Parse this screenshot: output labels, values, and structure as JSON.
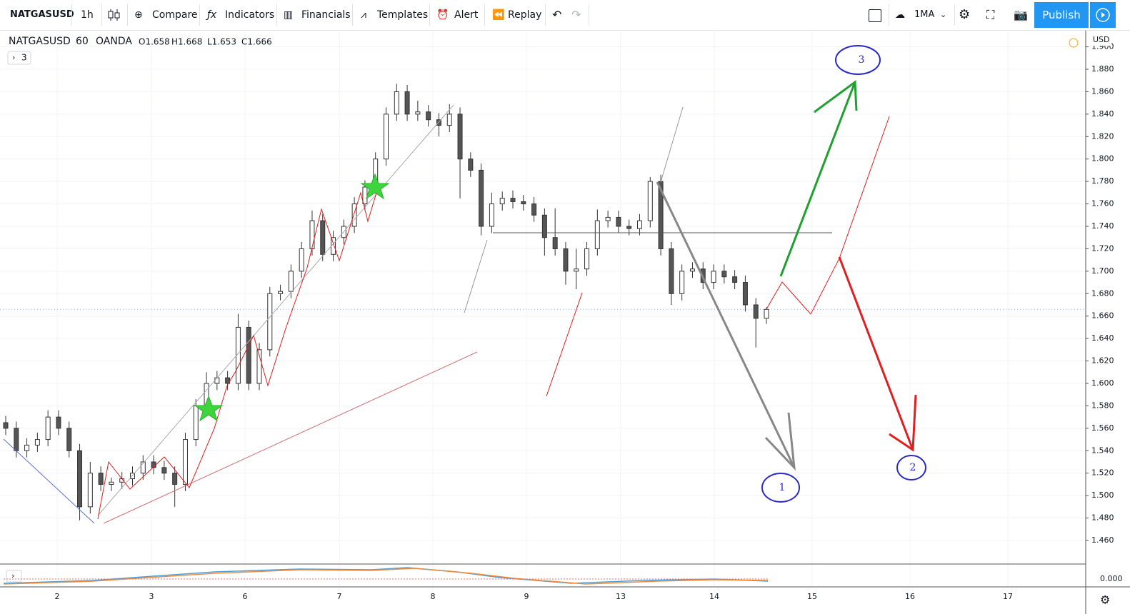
{
  "toolbar": {
    "symbol": "NATGASUSD",
    "interval": "1h",
    "buttons": [
      "Compare",
      "Indicators",
      "Financials",
      "Templates",
      "Alert",
      "Replay"
    ],
    "indicator_button": "1MA",
    "publish": "Publish"
  },
  "chart_data": {
    "type": "candlestick",
    "symbol": "NATGASUSD",
    "interval": "60",
    "source": "OANDA",
    "legend": [
      "O1.658",
      "H1.668",
      "L1.653",
      "C1.666"
    ],
    "collapsed_count": "3",
    "currency": "USD",
    "categories": [
      "2",
      "3",
      "6",
      "7",
      "8",
      "9",
      "13",
      "14",
      "15",
      "16",
      "17"
    ],
    "candles": [
      [
        1.565,
        1.571,
        1.554,
        1.56
      ],
      [
        1.56,
        1.566,
        1.534,
        1.54
      ],
      [
        1.54,
        1.551,
        1.534,
        1.545
      ],
      [
        1.545,
        1.556,
        1.539,
        1.55
      ],
      [
        1.55,
        1.576,
        1.544,
        1.57
      ],
      [
        1.57,
        1.576,
        1.554,
        1.56
      ],
      [
        1.56,
        1.566,
        1.534,
        1.54
      ],
      [
        1.54,
        1.546,
        1.478,
        1.49
      ],
      [
        1.49,
        1.53,
        1.484,
        1.52
      ],
      [
        1.52,
        1.526,
        1.504,
        1.51
      ],
      [
        1.51,
        1.516,
        1.504,
        1.512
      ],
      [
        1.512,
        1.521,
        1.506,
        1.515
      ],
      [
        1.515,
        1.526,
        1.509,
        1.52
      ],
      [
        1.52,
        1.536,
        1.514,
        1.53
      ],
      [
        1.53,
        1.536,
        1.519,
        1.525
      ],
      [
        1.525,
        1.531,
        1.514,
        1.52
      ],
      [
        1.52,
        1.526,
        1.49,
        1.51
      ],
      [
        1.51,
        1.556,
        1.504,
        1.55
      ],
      [
        1.55,
        1.586,
        1.544,
        1.58
      ],
      [
        1.58,
        1.61,
        1.574,
        1.6
      ],
      [
        1.6,
        1.611,
        1.594,
        1.605
      ],
      [
        1.605,
        1.611,
        1.594,
        1.6
      ],
      [
        1.6,
        1.662,
        1.594,
        1.65
      ],
      [
        1.65,
        1.656,
        1.594,
        1.6
      ],
      [
        1.6,
        1.636,
        1.594,
        1.63
      ],
      [
        1.63,
        1.686,
        1.624,
        1.68
      ],
      [
        1.68,
        1.688,
        1.674,
        1.682
      ],
      [
        1.682,
        1.706,
        1.676,
        1.7
      ],
      [
        1.7,
        1.726,
        1.694,
        1.72
      ],
      [
        1.72,
        1.754,
        1.714,
        1.745
      ],
      [
        1.745,
        1.751,
        1.709,
        1.715
      ],
      [
        1.715,
        1.736,
        1.709,
        1.73
      ],
      [
        1.73,
        1.746,
        1.724,
        1.74
      ],
      [
        1.74,
        1.766,
        1.734,
        1.76
      ],
      [
        1.76,
        1.781,
        1.754,
        1.775
      ],
      [
        1.775,
        1.806,
        1.769,
        1.8
      ],
      [
        1.8,
        1.846,
        1.794,
        1.84
      ],
      [
        1.84,
        1.867,
        1.834,
        1.86
      ],
      [
        1.86,
        1.866,
        1.834,
        1.84
      ],
      [
        1.84,
        1.852,
        1.834,
        1.842
      ],
      [
        1.842,
        1.848,
        1.829,
        1.835
      ],
      [
        1.835,
        1.841,
        1.82,
        1.83
      ],
      [
        1.83,
        1.849,
        1.824,
        1.84
      ],
      [
        1.84,
        1.846,
        1.765,
        1.8
      ],
      [
        1.8,
        1.806,
        1.784,
        1.79
      ],
      [
        1.79,
        1.796,
        1.732,
        1.74
      ],
      [
        1.74,
        1.77,
        1.734,
        1.76
      ],
      [
        1.76,
        1.771,
        1.754,
        1.765
      ],
      [
        1.765,
        1.772,
        1.756,
        1.762
      ],
      [
        1.762,
        1.768,
        1.754,
        1.76
      ],
      [
        1.76,
        1.766,
        1.744,
        1.75
      ],
      [
        1.75,
        1.756,
        1.714,
        1.73
      ],
      [
        1.73,
        1.756,
        1.714,
        1.72
      ],
      [
        1.72,
        1.726,
        1.688,
        1.7
      ],
      [
        1.7,
        1.72,
        1.684,
        1.702
      ],
      [
        1.702,
        1.726,
        1.696,
        1.72
      ],
      [
        1.72,
        1.755,
        1.714,
        1.745
      ],
      [
        1.745,
        1.754,
        1.739,
        1.748
      ],
      [
        1.748,
        1.754,
        1.734,
        1.74
      ],
      [
        1.74,
        1.746,
        1.732,
        1.738
      ],
      [
        1.738,
        1.751,
        1.732,
        1.745
      ],
      [
        1.745,
        1.784,
        1.739,
        1.78
      ],
      [
        1.78,
        1.786,
        1.714,
        1.72
      ],
      [
        1.72,
        1.726,
        1.67,
        1.68
      ],
      [
        1.68,
        1.706,
        1.674,
        1.7
      ],
      [
        1.7,
        1.708,
        1.694,
        1.702
      ],
      [
        1.702,
        1.708,
        1.684,
        1.69
      ],
      [
        1.69,
        1.706,
        1.684,
        1.7
      ],
      [
        1.7,
        1.706,
        1.689,
        1.695
      ],
      [
        1.695,
        1.701,
        1.684,
        1.69
      ],
      [
        1.69,
        1.696,
        1.664,
        1.67
      ],
      [
        1.67,
        1.676,
        1.632,
        1.658
      ],
      [
        1.658,
        1.668,
        1.653,
        1.666
      ]
    ],
    "ylim": [
      1.439,
      1.915
    ],
    "yticks": [
      {
        "value": 1.46,
        "label": "1.460"
      },
      {
        "value": 1.48,
        "label": "1.480"
      },
      {
        "value": 1.5,
        "label": "1.500"
      },
      {
        "value": 1.52,
        "label": "1.520"
      },
      {
        "value": 1.54,
        "label": "1.540"
      },
      {
        "value": 1.56,
        "label": "1.560"
      },
      {
        "value": 1.58,
        "label": "1.580"
      },
      {
        "value": 1.6,
        "label": "1.600"
      },
      {
        "value": 1.62,
        "label": "1.620"
      },
      {
        "value": 1.64,
        "label": "1.640"
      },
      {
        "value": 1.66,
        "label": "1.660"
      },
      {
        "value": 1.68,
        "label": "1.680"
      },
      {
        "value": 1.7,
        "label": "1.700"
      },
      {
        "value": 1.72,
        "label": "1.720"
      },
      {
        "value": 1.74,
        "label": "1.740"
      },
      {
        "value": 1.76,
        "label": "1.760"
      },
      {
        "value": 1.78,
        "label": "1.780"
      },
      {
        "value": 1.8,
        "label": "1.800"
      },
      {
        "value": 1.82,
        "label": "1.820"
      },
      {
        "value": 1.84,
        "label": "1.840"
      },
      {
        "value": 1.86,
        "label": "1.860"
      },
      {
        "value": 1.88,
        "label": "1.880"
      },
      {
        "value": 1.9,
        "label": "1.900"
      }
    ],
    "last_price": 1.666,
    "grid": true,
    "indicator_tick": {
      "value": 0,
      "label": "0.000"
    },
    "annotations": [
      "1",
      "2",
      "3"
    ]
  }
}
